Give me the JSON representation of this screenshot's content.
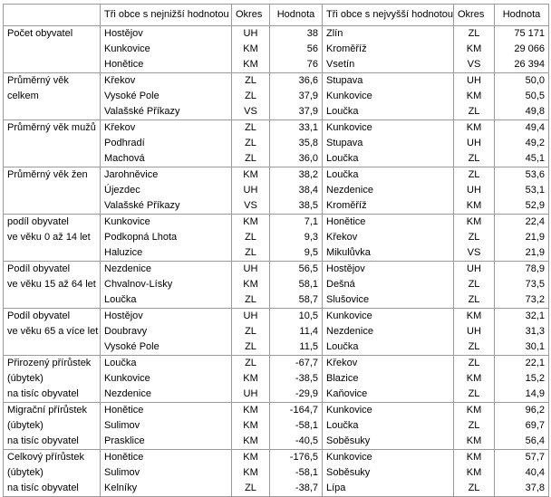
{
  "header": [
    "Tři obce s nejnižší hodnotou",
    "Okres",
    "Hodnota",
    "Tři obce s nejvyšší hodnotou",
    "Okres",
    "Hodnota"
  ],
  "groups": [
    {
      "label": [
        "Počet obyvatel"
      ],
      "rows": [
        [
          "Hostějov",
          "UH",
          "38",
          "Zlín",
          "ZL",
          "75 171"
        ],
        [
          "Kunkovice",
          "KM",
          "56",
          "Kroměříž",
          "KM",
          "29 066"
        ],
        [
          "Honětice",
          "KM",
          "76",
          "Vsetín",
          "VS",
          "26 394"
        ]
      ]
    },
    {
      "label": [
        "Průměrný věk",
        "celkem"
      ],
      "rows": [
        [
          "Křekov",
          "ZL",
          "36,6",
          "Stupava",
          "UH",
          "50,0"
        ],
        [
          "Vysoké Pole",
          "ZL",
          "37,9",
          "Kunkovice",
          "KM",
          "50,5"
        ],
        [
          "Valašské Příkazy",
          "VS",
          "37,9",
          "Loučka",
          "ZL",
          "49,8"
        ]
      ]
    },
    {
      "label": [
        "Průměrný věk mužů"
      ],
      "rows": [
        [
          "Křekov",
          "ZL",
          "33,1",
          "Kunkovice",
          "KM",
          "49,4"
        ],
        [
          "Podhradí",
          "ZL",
          "35,8",
          "Stupava",
          "UH",
          "49,2"
        ],
        [
          "Machová",
          "ZL",
          "36,0",
          "Loučka",
          "ZL",
          "45,1"
        ]
      ]
    },
    {
      "label": [
        "Průměrný věk žen"
      ],
      "rows": [
        [
          "Jarohněvice",
          "KM",
          "38,2",
          "Loučka",
          "ZL",
          "53,6"
        ],
        [
          "Újezdec",
          "UH",
          "38,4",
          "Nezdenice",
          "UH",
          "53,1"
        ],
        [
          "Valašské Příkazy",
          "VS",
          "38,5",
          "Kroměříž",
          "KM",
          "52,9"
        ]
      ]
    },
    {
      "label": [
        "podíl obyvatel",
        "ve věku 0 až 14 let"
      ],
      "rows": [
        [
          "Kunkovice",
          "KM",
          "7,1",
          "Honětice",
          "KM",
          "22,4"
        ],
        [
          "Podkopná Lhota",
          "ZL",
          "9,3",
          "Křekov",
          "ZL",
          "21,9"
        ],
        [
          "Haluzice",
          "ZL",
          "9,5",
          "Mikulůvka",
          "VS",
          "21,9"
        ]
      ]
    },
    {
      "label": [
        "Podíl obyvatel",
        "ve věku 15 až 64 let"
      ],
      "rows": [
        [
          "Nezdenice",
          "UH",
          "56,5",
          "Hostějov",
          "UH",
          "78,9"
        ],
        [
          "Chvalnov-Lísky",
          "KM",
          "58,1",
          "Dešná",
          "ZL",
          "73,5"
        ],
        [
          "Loučka",
          "ZL",
          "58,7",
          "Slušovice",
          "ZL",
          "73,2"
        ]
      ]
    },
    {
      "label": [
        "Podíl obyvatel",
        "ve věku 65 a více let"
      ],
      "rows": [
        [
          "Hostějov",
          "UH",
          "10,5",
          "Kunkovice",
          "KM",
          "32,1"
        ],
        [
          "Doubravy",
          "ZL",
          "11,4",
          "Nezdenice",
          "UH",
          "31,3"
        ],
        [
          "Vysoké Pole",
          "ZL",
          "11,5",
          "Loučka",
          "ZL",
          "30,1"
        ]
      ]
    },
    {
      "label": [
        "Přirozený přírůstek",
        "(úbytek)",
        "na tisíc obyvatel"
      ],
      "rows": [
        [
          "Loučka",
          "ZL",
          "-67,7",
          "Křekov",
          "ZL",
          "22,1"
        ],
        [
          "Kunkovice",
          "KM",
          "-38,5",
          "Blazice",
          "KM",
          "15,2"
        ],
        [
          "Nezdenice",
          "UH",
          "-29,9",
          "Kaňovice",
          "ZL",
          "14,9"
        ]
      ]
    },
    {
      "label": [
        "Migrační přírůstek",
        "(úbytek)",
        "na tisíc obyvatel"
      ],
      "rows": [
        [
          "Honětice",
          "KM",
          "-164,7",
          "Kunkovice",
          "KM",
          "96,2"
        ],
        [
          "Sulimov",
          "KM",
          "-58,1",
          "Loučka",
          "ZL",
          "69,7"
        ],
        [
          "Prasklice",
          "KM",
          "-40,5",
          "Soběsuky",
          "KM",
          "56,4"
        ]
      ]
    },
    {
      "label": [
        "Celkový přírůstek",
        "(úbytek)",
        "na tisíc obyvatel"
      ],
      "rows": [
        [
          "Honětice",
          "KM",
          "-176,5",
          "Kunkovice",
          "KM",
          "57,7"
        ],
        [
          "Sulimov",
          "KM",
          "-58,1",
          "Soběsuky",
          "KM",
          "40,4"
        ],
        [
          "Kelníky",
          "ZL",
          "-38,7",
          "Lípa",
          "ZL",
          "37,8"
        ]
      ]
    }
  ]
}
